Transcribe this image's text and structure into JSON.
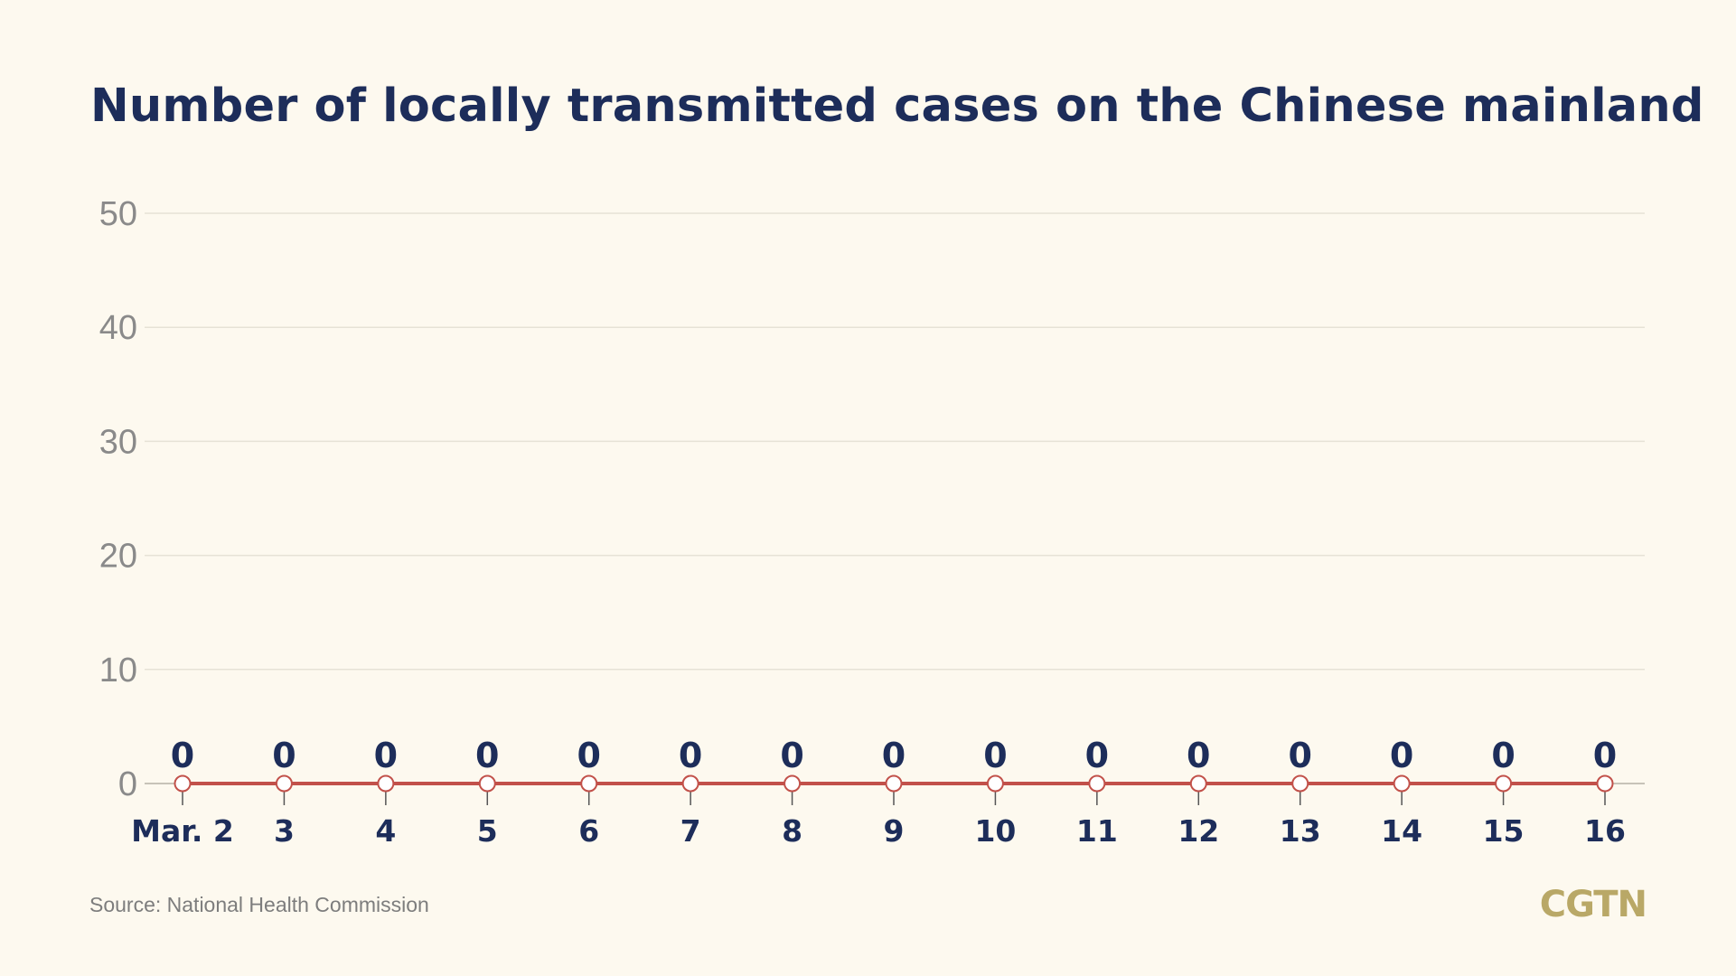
{
  "title": "Number of locally transmitted cases on the Chinese mainland",
  "source": "Source: National Health Commission",
  "logo": "CGTN",
  "colors": {
    "background": "#fdf9ef",
    "title": "#1d2d5a",
    "line": "#c2514a",
    "marker_fill": "#ffffff",
    "grid": "#e6e2d6",
    "logo": "#b9a867"
  },
  "chart_data": {
    "type": "line",
    "title": "Number of locally transmitted cases on the Chinese mainland",
    "xlabel": "",
    "ylabel": "",
    "categories": [
      "Mar. 2",
      "3",
      "4",
      "5",
      "6",
      "7",
      "8",
      "9",
      "10",
      "11",
      "12",
      "13",
      "14",
      "15",
      "16"
    ],
    "series": [
      {
        "values": [
          0,
          0,
          0,
          0,
          0,
          0,
          0,
          0,
          0,
          0,
          0,
          0,
          0,
          0,
          0
        ]
      }
    ],
    "data_labels": [
      "0",
      "0",
      "0",
      "0",
      "0",
      "0",
      "0",
      "0",
      "0",
      "0",
      "0",
      "0",
      "0",
      "0",
      "0"
    ],
    "ylim": [
      0,
      50
    ],
    "yticks": [
      0,
      10,
      20,
      30,
      40,
      50
    ],
    "grid": true,
    "legend": "none"
  }
}
